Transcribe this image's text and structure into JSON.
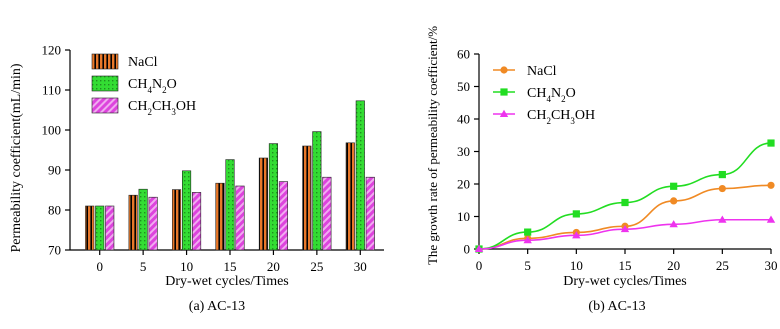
{
  "chart_data": [
    {
      "type": "bar",
      "caption": "(a)  AC-13",
      "xlabel": "Dry-wet cycles/Times",
      "ylabel": "Permeability coefficient(mL/min)",
      "ylim": [
        70,
        120
      ],
      "yticks": [
        70,
        80,
        90,
        100,
        110,
        120
      ],
      "categories": [
        "0",
        "5",
        "10",
        "15",
        "20",
        "25",
        "30"
      ],
      "legend_position": "top-left",
      "series": [
        {
          "name": "NaCl",
          "name_html": "NaCl",
          "color": "#E8782A",
          "pattern": "vertical-stripes",
          "values": [
            81.0,
            83.7,
            85.1,
            86.7,
            93.0,
            96.0,
            96.8
          ]
        },
        {
          "name": "CH4N2O",
          "name_html": "CH<tspan baseline-shift='sub' font-size='9'>4</tspan>N<tspan baseline-shift='sub' font-size='9'>2</tspan>O",
          "color": "#33DD33",
          "pattern": "grid-dots",
          "values": [
            81.0,
            85.2,
            89.8,
            92.6,
            96.6,
            99.6,
            107.3
          ]
        },
        {
          "name": "CH2CH3OH",
          "name_html": "CH<tspan baseline-shift='sub' font-size='9'>2</tspan>CH<tspan baseline-shift='sub' font-size='9'>3</tspan>OH",
          "color": "#DD44DD",
          "pattern": "diagonal-stripes",
          "values": [
            81.0,
            83.2,
            84.4,
            86.0,
            87.1,
            88.2,
            88.2
          ]
        }
      ]
    },
    {
      "type": "line",
      "caption": "(b)  AC-13",
      "xlabel": "Dry-wet cycles/Times",
      "ylabel": "The growth rate of permeability coefficient/%",
      "xlim": [
        0,
        30
      ],
      "ylim": [
        0,
        60
      ],
      "xticks": [
        0,
        5,
        10,
        15,
        20,
        25,
        30
      ],
      "yticks": [
        0,
        10,
        20,
        30,
        40,
        50,
        60
      ],
      "x": [
        0,
        5,
        10,
        15,
        20,
        25,
        30
      ],
      "legend_position": "top-left",
      "series": [
        {
          "name": "NaCl",
          "name_html": "NaCl",
          "color": "#F08A24",
          "marker": "circle",
          "values": [
            0,
            3.3,
            5.1,
            7.0,
            14.8,
            18.6,
            19.6
          ]
        },
        {
          "name": "CH4N2O",
          "name_html": "CH<tspan baseline-shift='sub' font-size='9'>4</tspan>N<tspan baseline-shift='sub' font-size='9'>2</tspan>O",
          "color": "#22DD22",
          "marker": "square",
          "values": [
            0,
            5.2,
            10.8,
            14.3,
            19.3,
            22.9,
            32.6
          ]
        },
        {
          "name": "CH2CH3OH",
          "name_html": "CH<tspan baseline-shift='sub' font-size='9'>2</tspan>CH<tspan baseline-shift='sub' font-size='9'>3</tspan>OH",
          "color": "#EE33EE",
          "marker": "triangle",
          "values": [
            0,
            2.7,
            4.2,
            6.1,
            7.6,
            9.0,
            9.0
          ]
        }
      ]
    }
  ]
}
